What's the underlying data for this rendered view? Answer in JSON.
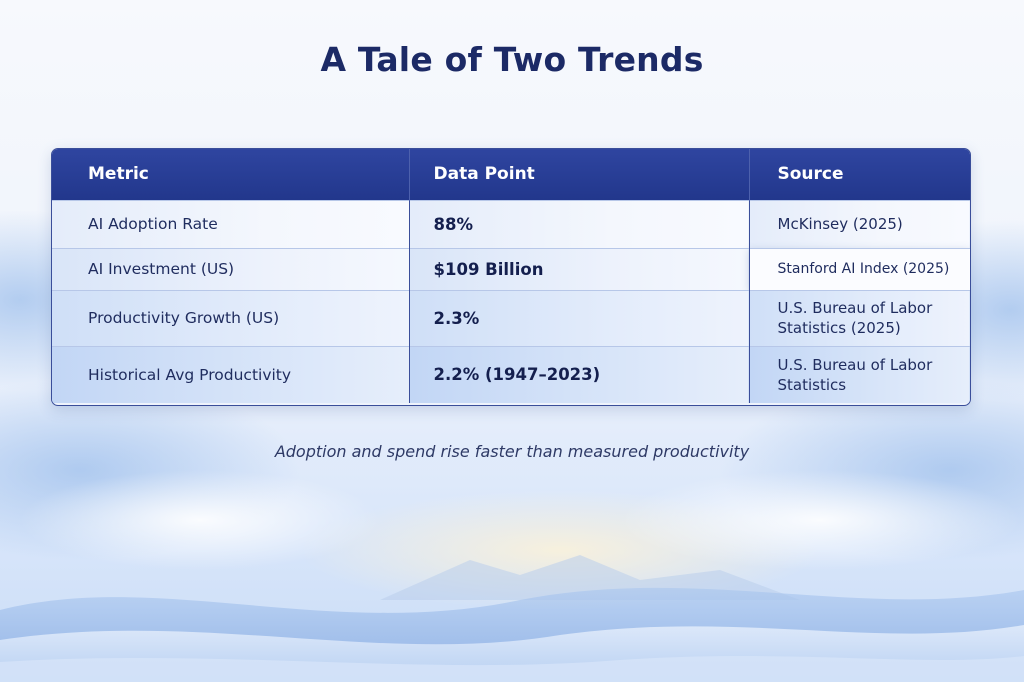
{
  "slide": {
    "title": "A Tale of Two Trends",
    "caption": "Adoption and spend rise faster than measured productivity"
  },
  "table": {
    "headers": [
      "Metric",
      "Data Point",
      "Source"
    ],
    "rows": [
      {
        "metric": "AI Adoption Rate",
        "value": "88%",
        "source": "McKinsey (2025)"
      },
      {
        "metric": "AI Investment (US)",
        "value": "$109 Billion",
        "source": "Stanford AI Index (2025)"
      },
      {
        "metric": "Productivity Growth (US)",
        "value": "2.3%",
        "source": "U.S. Bureau of Labor Statistics (2025)"
      },
      {
        "metric": "Historical Avg Productivity",
        "value": "2.2% (1947–2023)",
        "source": "U.S. Bureau of Labor Statistics"
      }
    ]
  },
  "colors": {
    "title": "#1c2a66",
    "header_bg": "#22378c",
    "header_text": "#ffffff",
    "border": "#3a4e9a"
  }
}
